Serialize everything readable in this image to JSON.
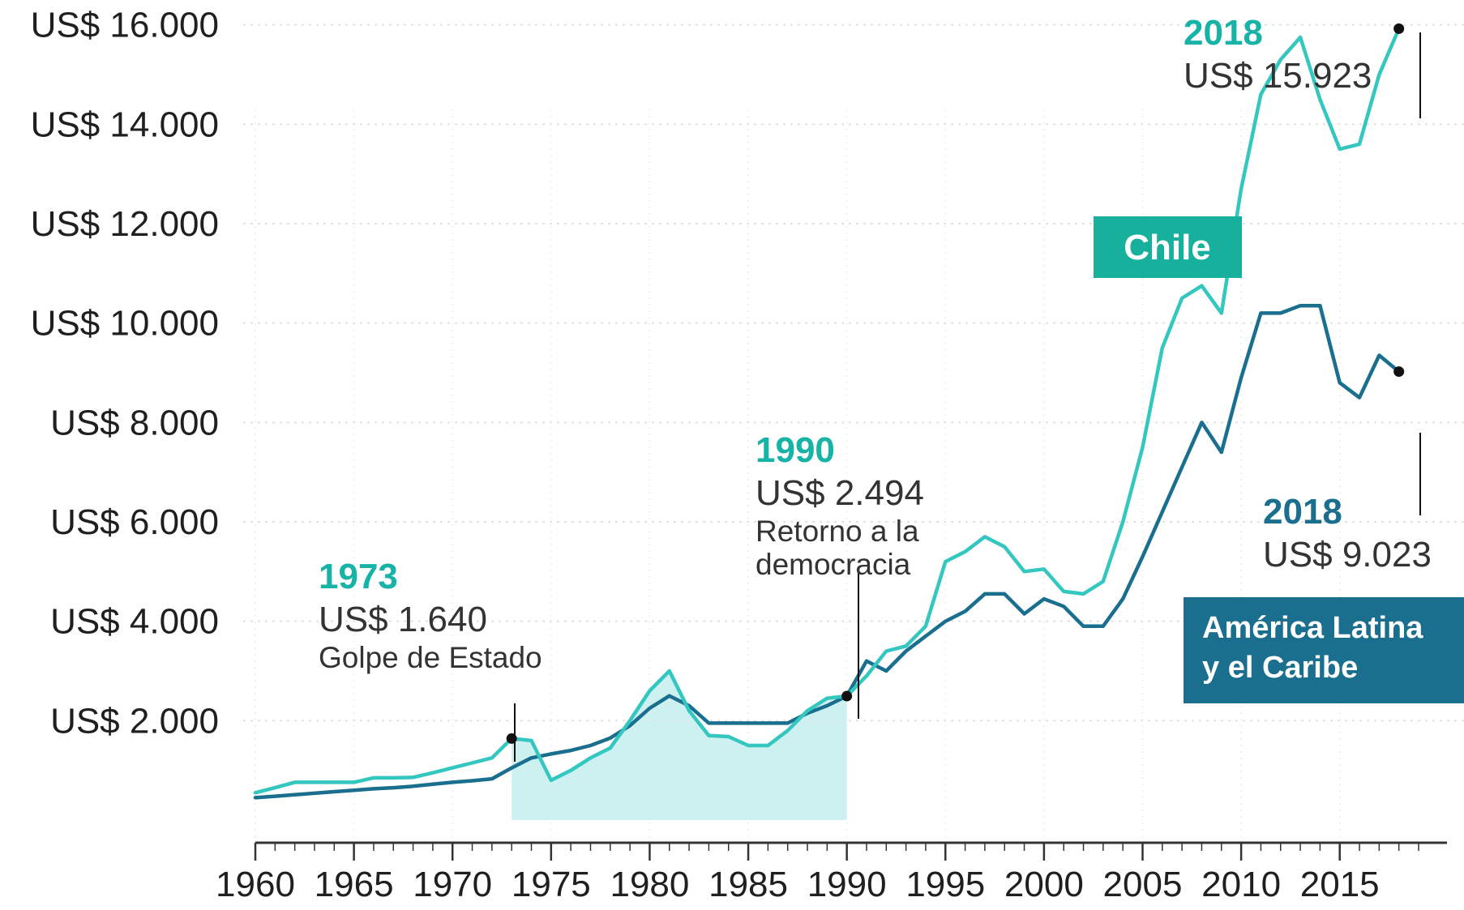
{
  "chart_data": {
    "type": "line",
    "x": [
      1960,
      1961,
      1962,
      1963,
      1964,
      1965,
      1966,
      1967,
      1968,
      1969,
      1970,
      1971,
      1972,
      1973,
      1974,
      1975,
      1976,
      1977,
      1978,
      1979,
      1980,
      1981,
      1982,
      1983,
      1984,
      1985,
      1986,
      1987,
      1988,
      1989,
      1990,
      1991,
      1992,
      1993,
      1994,
      1995,
      1996,
      1997,
      1998,
      1999,
      2000,
      2001,
      2002,
      2003,
      2004,
      2005,
      2006,
      2007,
      2008,
      2009,
      2010,
      2011,
      2012,
      2013,
      2014,
      2015,
      2016,
      2017,
      2018
    ],
    "series": [
      {
        "name": "Chile",
        "color": "#33c7c0",
        "values": [
          550,
          650,
          760,
          760,
          760,
          760,
          850,
          850,
          860,
          950,
          1050,
          1150,
          1250,
          1640,
          1600,
          800,
          1000,
          1250,
          1450,
          2000,
          2600,
          3000,
          2200,
          1700,
          1680,
          1500,
          1500,
          1800,
          2200,
          2450,
          2494,
          2900,
          3400,
          3500,
          3900,
          5200,
          5400,
          5700,
          5500,
          5000,
          5050,
          4600,
          4550,
          4800,
          6000,
          7500,
          9500,
          10500,
          10750,
          10200,
          12700,
          14600,
          15300,
          15750,
          14500,
          13500,
          13600,
          15000,
          15923
        ]
      },
      {
        "name": "América Latina y el Caribe",
        "color": "#1a6f8f",
        "values": [
          450,
          480,
          510,
          540,
          570,
          600,
          630,
          650,
          680,
          720,
          760,
          790,
          830,
          1050,
          1250,
          1330,
          1400,
          1500,
          1650,
          1900,
          2250,
          2500,
          2300,
          1950,
          1950,
          1950,
          1950,
          1950,
          2150,
          2300,
          2494,
          3200,
          3000,
          3400,
          3700,
          4000,
          4200,
          4550,
          4550,
          4150,
          4450,
          4300,
          3900,
          3900,
          4450,
          5300,
          6200,
          7100,
          8000,
          7400,
          8900,
          10200,
          10200,
          10350,
          10350,
          8800,
          8500,
          9350,
          9023
        ]
      }
    ],
    "ylim": [
      0,
      16500
    ],
    "yticks": [
      2000,
      4000,
      6000,
      8000,
      10000,
      12000,
      14000,
      16000
    ],
    "ytick_labels": [
      "US$ 2.000",
      "US$ 4.000",
      "US$ 6.000",
      "US$ 8.000",
      "US$ 10.000",
      "US$ 12.000",
      "US$ 14.000",
      "US$ 16.000"
    ],
    "xlim": [
      1960,
      2019
    ],
    "xticks": [
      1960,
      1965,
      1970,
      1975,
      1980,
      1985,
      1990,
      1995,
      2000,
      2005,
      2010,
      2015
    ],
    "xtick_labels": [
      "1960",
      "1965",
      "1970",
      "1975",
      "1980",
      "1985",
      "1990",
      "1995",
      "2000",
      "2005",
      "2010",
      "2015"
    ],
    "grid": true,
    "shaded_period": {
      "from": 1973,
      "to": 1990,
      "color": "#cdf1f1"
    },
    "annotations": [
      {
        "id": "a1973",
        "year_label": "1973",
        "value_label": "US$ 1.640",
        "note": [
          "Golpe de Estado"
        ],
        "x": 1973,
        "y": 1640,
        "series": "Chile"
      },
      {
        "id": "a1990",
        "year_label": "1990",
        "value_label": "US$ 2.494",
        "note": [
          "Retorno a la",
          "democracia"
        ],
        "x": 1990,
        "y": 2494,
        "series": "Chile"
      },
      {
        "id": "a2018c",
        "year_label": "2018",
        "value_label": "US$ 15.923",
        "note": [],
        "x": 2018,
        "y": 15923,
        "series": "Chile"
      },
      {
        "id": "a2018l",
        "year_label": "2018",
        "value_label": "US$ 9.023",
        "note": [],
        "x": 2018,
        "y": 9023,
        "series": "América Latina y el Caribe"
      }
    ],
    "legend": [
      {
        "lines": [
          "Chile"
        ],
        "color": "#17b09c"
      },
      {
        "lines": [
          "América Latina",
          "y el Caribe"
        ],
        "color": "#1a6f8f"
      }
    ]
  }
}
